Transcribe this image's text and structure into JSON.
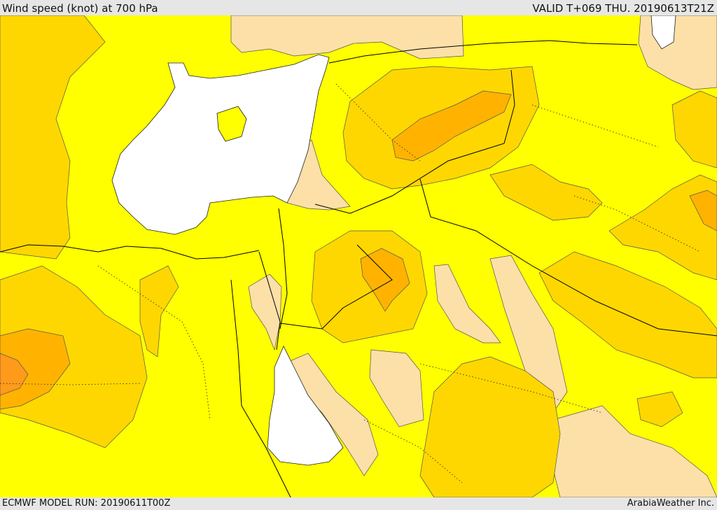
{
  "header": {
    "title": "Wind speed (knot) at 700 hPa",
    "valid": "VALID T+069 THU. 20190613T21Z"
  },
  "footer": {
    "model_run": "ECMWF MODEL RUN: 20190611T00Z",
    "credit": "ArabiaWeather Inc."
  },
  "map": {
    "palette": {
      "lightest": "#fde0a8",
      "yellow": "#ffff00",
      "gold": "#ffd700",
      "amber": "#ffb300",
      "orange": "#ff9a1a",
      "water": "#ffffff"
    }
  }
}
